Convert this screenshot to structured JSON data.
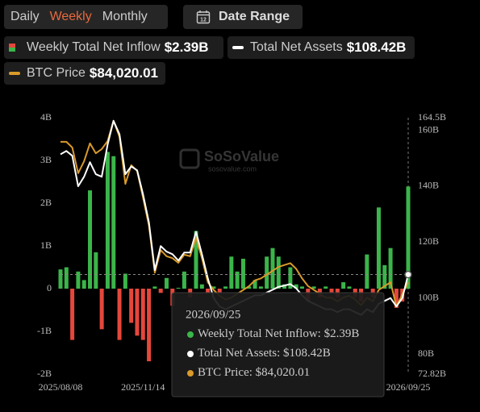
{
  "controls": {
    "periods": [
      "Daily",
      "Weekly",
      "Monthly"
    ],
    "active_period": 1,
    "date_range": "Date Range",
    "calendar_icon": "12"
  },
  "watermark": {
    "name": "SoSoValue",
    "url": "sosovalue.com"
  },
  "chart_data": {
    "type": "bar",
    "categories": [
      "2025/08/08",
      null,
      null,
      null,
      null,
      null,
      null,
      null,
      null,
      null,
      null,
      null,
      null,
      null,
      "2025/11/14",
      null,
      null,
      null,
      null,
      null,
      null,
      null,
      null,
      null,
      null,
      null,
      null,
      null,
      null,
      null,
      null,
      null,
      null,
      null,
      null,
      null,
      null,
      null,
      null,
      null,
      null,
      null,
      null,
      null,
      null,
      null,
      null,
      null,
      null,
      null,
      null,
      null,
      null,
      null,
      null,
      null,
      null,
      null,
      null,
      "2026/09/25"
    ],
    "series": [
      {
        "name": "Weekly Total Net Inflow",
        "type": "bar",
        "color": "#3bb54a",
        "negative_color": "#e5473b",
        "values": [
          0.45,
          0.5,
          -1.2,
          0.4,
          0.2,
          2.3,
          0.85,
          -0.95,
          3.2,
          3.1,
          -1.2,
          0.35,
          -0.8,
          -1.1,
          -1.2,
          -1.7,
          0.05,
          -0.1,
          0.25,
          -0.4,
          0.02,
          0.4,
          -0.2,
          1.35,
          0.1,
          -0.1,
          0.05,
          -0.1,
          0.05,
          0.75,
          0.4,
          0.7,
          0.05,
          0.2,
          0.05,
          0.75,
          0.95,
          0.75,
          0.1,
          0.5,
          0.1,
          0.05,
          -0.3,
          0.05,
          -0.2,
          0.05,
          -0.1,
          -0.2,
          0.15,
          0.05,
          -0.2,
          -0.3,
          0.8,
          -0.2,
          1.9,
          0.55,
          0.95,
          -0.45,
          -0.3,
          2.39
        ],
        "value_labels": [
          null,
          null,
          null,
          null,
          null,
          null,
          null,
          null,
          null,
          null,
          null,
          null,
          null,
          null,
          null,
          null,
          null,
          null,
          null,
          null,
          null,
          null,
          null,
          null,
          null,
          null,
          null,
          null,
          null,
          null,
          null,
          null,
          null,
          null,
          null,
          null,
          null,
          null,
          null,
          null,
          null,
          null,
          null,
          null,
          null,
          null,
          null,
          null,
          null,
          null,
          null,
          null,
          null,
          null,
          null,
          null,
          null,
          null,
          null,
          "$2.39B"
        ]
      },
      {
        "name": "Total Net Assets",
        "type": "line",
        "axis": "y2",
        "color": "#ffffff",
        "values": [
          151.4,
          152.6,
          150.9,
          140,
          143.4,
          148.6,
          144.3,
          143.4,
          154.9,
          163.4,
          158.6,
          144.3,
          147.1,
          145.7,
          137.1,
          127.1,
          110,
          118.6,
          116.6,
          115.7,
          113.4,
          116.3,
          116.3,
          123.7,
          115.7,
          107.1,
          100,
          97,
          96,
          97,
          98,
          99,
          100,
          101,
          101,
          102,
          103,
          104,
          104.5,
          105,
          103.5,
          101,
          99,
          98,
          97,
          96,
          96,
          95,
          96,
          96,
          95,
          94,
          96,
          95,
          98,
          99,
          100,
          97,
          100,
          108.42
        ],
        "value_labels": [
          null,
          null,
          null,
          null,
          null,
          null,
          null,
          null,
          null,
          null,
          null,
          null,
          null,
          null,
          null,
          null,
          null,
          null,
          null,
          null,
          null,
          null,
          null,
          null,
          null,
          null,
          null,
          null,
          null,
          null,
          null,
          null,
          null,
          null,
          null,
          null,
          null,
          null,
          null,
          null,
          null,
          null,
          null,
          null,
          null,
          null,
          null,
          null,
          null,
          null,
          null,
          null,
          null,
          null,
          null,
          null,
          null,
          null,
          null,
          "$108.42B"
        ]
      },
      {
        "name": "BTC Price",
        "type": "line",
        "axis": "y3",
        "color": "#d99a2b",
        "values": [
          120700,
          120700,
          119200,
          112500,
          115600,
          120300,
          117700,
          118800,
          120900,
          126200,
          122000,
          109700,
          114600,
          113100,
          106100,
          98800,
          86500,
          92400,
          90800,
          90300,
          89100,
          91200,
          90800,
          95600,
          90300,
          84000,
          82000,
          80500,
          79500,
          80000,
          81000,
          82000,
          83000,
          84500,
          85000,
          86000,
          87000,
          88000,
          88500,
          89000,
          87500,
          85000,
          83000,
          82000,
          81000,
          80000,
          80000,
          79000,
          80000,
          80500,
          79500,
          78000,
          80000,
          79000,
          82000,
          83000,
          84000,
          77700,
          80900,
          84020.01
        ],
        "value_labels": [
          null,
          null,
          null,
          null,
          null,
          null,
          null,
          null,
          null,
          null,
          null,
          null,
          null,
          null,
          null,
          null,
          null,
          null,
          null,
          null,
          null,
          null,
          null,
          null,
          null,
          null,
          null,
          null,
          null,
          null,
          null,
          null,
          null,
          null,
          null,
          null,
          null,
          null,
          null,
          null,
          null,
          null,
          null,
          null,
          null,
          null,
          null,
          null,
          null,
          null,
          null,
          null,
          null,
          null,
          null,
          null,
          null,
          null,
          null,
          "$84,020.01"
        ]
      }
    ],
    "ylim": [
      -2,
      4
    ],
    "yticks": [
      {
        "value": 4,
        "label": "4B"
      },
      {
        "value": 3,
        "label": "3B"
      },
      {
        "value": 2,
        "label": "2B"
      },
      {
        "value": 1,
        "label": "1B"
      },
      0,
      {
        "value": -1,
        "label": "-1B"
      },
      {
        "value": -2,
        "label": "-2B"
      }
    ],
    "y2lim": [
      72.82,
      164.5
    ],
    "y2ticks": [
      {
        "value": 164.5,
        "label": "164.5B"
      },
      {
        "value": 160,
        "label": "160B"
      },
      {
        "value": 140,
        "label": "140B"
      },
      {
        "value": 120,
        "label": "120B"
      },
      {
        "value": 100,
        "label": "100B"
      },
      {
        "value": 80,
        "label": "80B"
      },
      {
        "value": 72.82,
        "label": "72.82B"
      }
    ],
    "y3lim": [
      60000,
      127000
    ],
    "grid": false,
    "tooltip_labels": [
      "Weekly Total Net Inflow:",
      "Total Net Assets:",
      "BTC Price:"
    ]
  }
}
